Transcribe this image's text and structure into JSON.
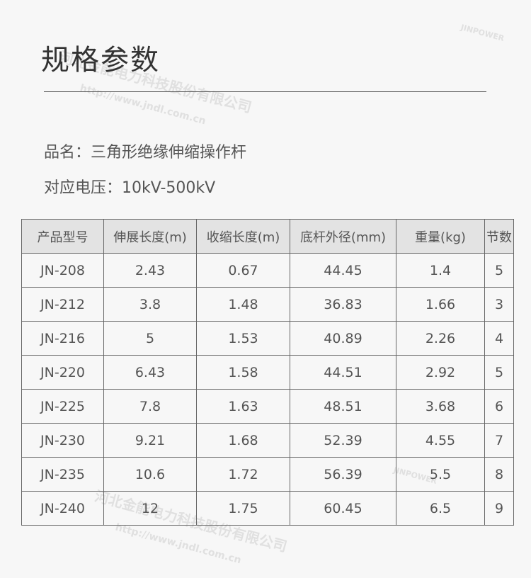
{
  "title": "规格参数",
  "product_name": "品名：三角形绝缘伸缩操作杆",
  "voltage": "对应电压：10kV-500kV",
  "table": {
    "headers": [
      "产品型号",
      "伸展长度(m)",
      "收缩长度(m)",
      "底杆外径(mm)",
      "重量(kg)",
      "节数"
    ],
    "rows": [
      [
        "JN-208",
        "2.43",
        "0.67",
        "44.45",
        "1.4",
        "5"
      ],
      [
        "JN-212",
        "3.8",
        "1.48",
        "36.83",
        "1.66",
        "3"
      ],
      [
        "JN-216",
        "5",
        "1.53",
        "40.89",
        "2.26",
        "4"
      ],
      [
        "JN-220",
        "6.43",
        "1.58",
        "44.51",
        "2.92",
        "5"
      ],
      [
        "JN-225",
        "7.8",
        "1.63",
        "48.51",
        "3.68",
        "6"
      ],
      [
        "JN-230",
        "9.21",
        "1.68",
        "52.39",
        "4.55",
        "7"
      ],
      [
        "JN-235",
        "10.6",
        "1.72",
        "56.39",
        "5.5",
        "8"
      ],
      [
        "JN-240",
        "12",
        "1.75",
        "60.45",
        "6.5",
        "9"
      ]
    ]
  },
  "watermark": {
    "company": "河北金能电力科技股份有限公司",
    "url": "http://www.jndl.com.cn",
    "brand": "JINPOWER"
  }
}
